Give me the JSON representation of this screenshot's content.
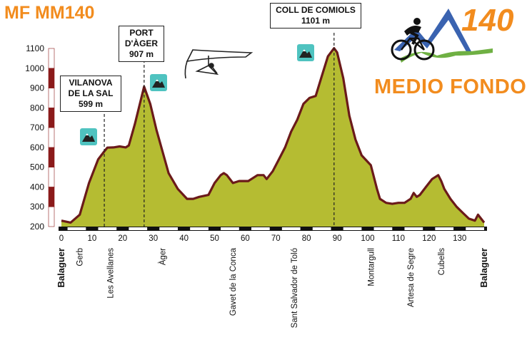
{
  "header": {
    "title": "MF MM140"
  },
  "logo": {
    "number": "140",
    "text": "MEDIO FONDO",
    "colors": {
      "orange": "#f28c1e",
      "blue": "#3a63b0",
      "green": "#6fb043"
    }
  },
  "peaks": [
    {
      "name_lines": [
        "VILANOVA",
        "DE LA SAL"
      ],
      "altitude": "599 m",
      "km": 14,
      "icon": "mountain-icon"
    },
    {
      "name_lines": [
        "PORT",
        "D'ÀGER"
      ],
      "altitude": "907 m",
      "km": 27,
      "icon": "mountain-icon"
    },
    {
      "name_lines": [
        "COLL DE COMIOLS"
      ],
      "altitude": "1101 m",
      "km": 89,
      "icon": "mountain-icon"
    }
  ],
  "decoration": {
    "glider": "hang-glider-icon"
  },
  "chart_data": {
    "type": "area",
    "title": "",
    "xlabel": "",
    "ylabel": "",
    "xlim": [
      0,
      138
    ],
    "ylim": [
      200,
      1100
    ],
    "x_ticks": [
      0,
      10,
      20,
      30,
      40,
      50,
      60,
      70,
      80,
      90,
      100,
      110,
      120,
      130
    ],
    "y_ticks": [
      200,
      300,
      400,
      500,
      600,
      700,
      800,
      900,
      1000,
      1100
    ],
    "grid": false,
    "fill_color": "#b5bc32",
    "line_color": "#6b1a1a",
    "series": [
      {
        "x": [
          0,
          3,
          6,
          9,
          12,
          14,
          15,
          17,
          19,
          21,
          22,
          24,
          27,
          29,
          31,
          35,
          38,
          41,
          43,
          45,
          48,
          50,
          52,
          53,
          54,
          56,
          58,
          61,
          64,
          66,
          67,
          69,
          71,
          73,
          75,
          77,
          79,
          81,
          83,
          85,
          87,
          89,
          90,
          92,
          94,
          96,
          98,
          101,
          103,
          104,
          106,
          108,
          110,
          112,
          114,
          115,
          116,
          117,
          119,
          121,
          123,
          124,
          125,
          127,
          129,
          131,
          133,
          135,
          136,
          137,
          138
        ],
        "y": [
          230,
          220,
          260,
          420,
          540,
          580,
          599,
          600,
          605,
          600,
          610,
          720,
          907,
          820,
          690,
          470,
          390,
          340,
          340,
          350,
          360,
          420,
          460,
          470,
          460,
          420,
          430,
          430,
          460,
          460,
          440,
          480,
          540,
          600,
          680,
          740,
          820,
          850,
          860,
          960,
          1060,
          1101,
          1080,
          950,
          760,
          640,
          560,
          510,
          390,
          340,
          320,
          315,
          320,
          320,
          340,
          370,
          350,
          360,
          400,
          440,
          460,
          430,
          390,
          340,
          300,
          270,
          240,
          230,
          260,
          240,
          220
        ]
      }
    ],
    "towns": [
      {
        "name": "Balaguer",
        "km": 0,
        "bold": true
      },
      {
        "name": "Gerb",
        "km": 6,
        "bold": false
      },
      {
        "name": "Les Avellanes",
        "km": 16,
        "bold": false
      },
      {
        "name": "Àger",
        "km": 33,
        "bold": false
      },
      {
        "name": "Gavet de la Conca",
        "km": 56,
        "bold": false
      },
      {
        "name": "Sant Salvador de Toló",
        "km": 76,
        "bold": false
      },
      {
        "name": "Montargull",
        "km": 101,
        "bold": false
      },
      {
        "name": "Artesa de Segre",
        "km": 114,
        "bold": false
      },
      {
        "name": "Cubells",
        "km": 124,
        "bold": false
      },
      {
        "name": "Balaguer",
        "km": 138,
        "bold": true
      }
    ]
  }
}
